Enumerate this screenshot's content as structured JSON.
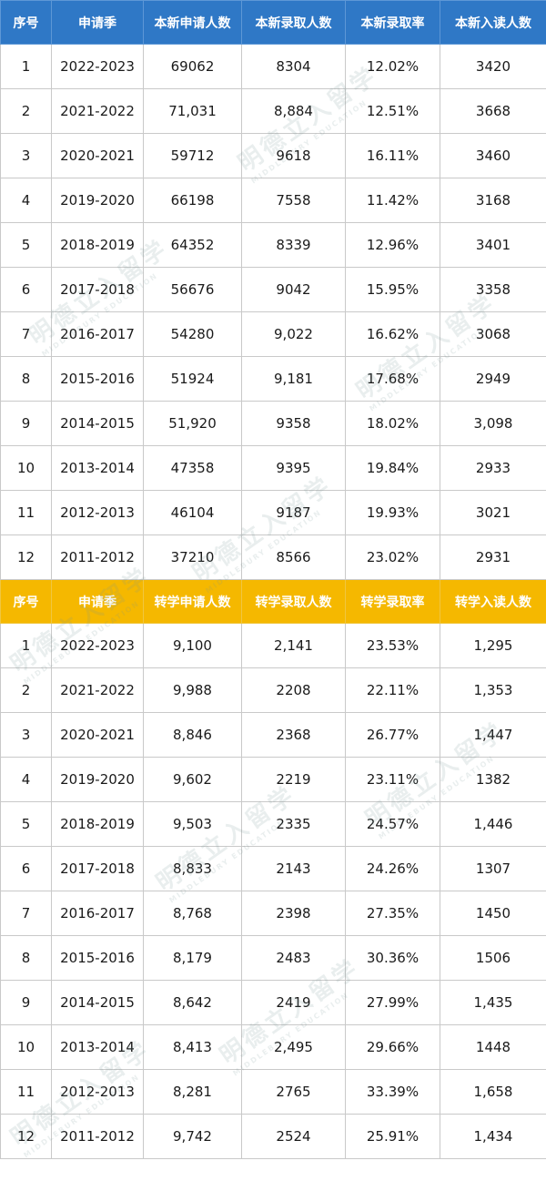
{
  "new_students": {
    "headers": [
      "序号",
      "申请季",
      "本新申请人数",
      "本新录取人数",
      "本新录取率",
      "本新入读人数"
    ],
    "rows": [
      [
        "1",
        "2022-2023",
        "69062",
        "8304",
        "12.02%",
        "3420"
      ],
      [
        "2",
        "2021-2022",
        "71,031",
        "8,884",
        "12.51%",
        "3668"
      ],
      [
        "3",
        "2020-2021",
        "59712",
        "9618",
        "16.11%",
        "3460"
      ],
      [
        "4",
        "2019-2020",
        "66198",
        "7558",
        "11.42%",
        "3168"
      ],
      [
        "5",
        "2018-2019",
        "64352",
        "8339",
        "12.96%",
        "3401"
      ],
      [
        "6",
        "2017-2018",
        "56676",
        "9042",
        "15.95%",
        "3358"
      ],
      [
        "7",
        "2016-2017",
        "54280",
        "9,022",
        "16.62%",
        "3068"
      ],
      [
        "8",
        "2015-2016",
        "51924",
        "9,181",
        "17.68%",
        "2949"
      ],
      [
        "9",
        "2014-2015",
        "51,920",
        "9358",
        "18.02%",
        "3,098"
      ],
      [
        "10",
        "2013-2014",
        "47358",
        "9395",
        "19.84%",
        "2933"
      ],
      [
        "11",
        "2012-2013",
        "46104",
        "9187",
        "19.93%",
        "3021"
      ],
      [
        "12",
        "2011-2012",
        "37210",
        "8566",
        "23.02%",
        "2931"
      ]
    ]
  },
  "transfer_students": {
    "headers": [
      "序号",
      "申请季",
      "转学申请人数",
      "转学录取人数",
      "转学录取率",
      "转学入读人数"
    ],
    "rows": [
      [
        "1",
        "2022-2023",
        "9,100",
        "2,141",
        "23.53%",
        "1,295"
      ],
      [
        "2",
        "2021-2022",
        "9,988",
        "2208",
        "22.11%",
        "1,353"
      ],
      [
        "3",
        "2020-2021",
        "8,846",
        "2368",
        "26.77%",
        "1,447"
      ],
      [
        "4",
        "2019-2020",
        "9,602",
        "2219",
        "23.11%",
        "1382"
      ],
      [
        "5",
        "2018-2019",
        "9,503",
        "2335",
        "24.57%",
        "1,446"
      ],
      [
        "6",
        "2017-2018",
        "8,833",
        "2143",
        "24.26%",
        "1307"
      ],
      [
        "7",
        "2016-2017",
        "8,768",
        "2398",
        "27.35%",
        "1450"
      ],
      [
        "8",
        "2015-2016",
        "8,179",
        "2483",
        "30.36%",
        "1506"
      ],
      [
        "9",
        "2014-2015",
        "8,642",
        "2419",
        "27.99%",
        "1,435"
      ],
      [
        "10",
        "2013-2014",
        "8,413",
        "2,495",
        "29.66%",
        "1448"
      ],
      [
        "11",
        "2012-2013",
        "8,281",
        "2765",
        "33.39%",
        "1,658"
      ],
      [
        "12",
        "2011-2012",
        "9,742",
        "2524",
        "25.91%",
        "1,434"
      ]
    ]
  },
  "watermark": {
    "text": "明德立入留学",
    "subtext": "MIDDLEBURY EDUCATION"
  }
}
